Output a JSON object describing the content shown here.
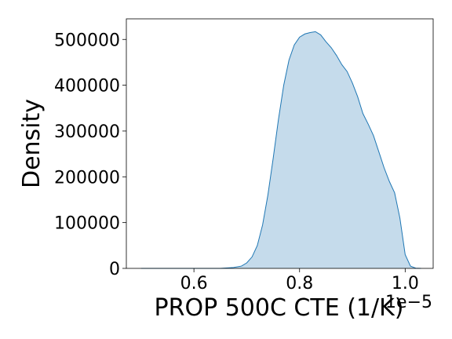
{
  "colors": {
    "fill": "#c5dbeb",
    "line": "#1f77b4",
    "axes": "#000000",
    "background": "#ffffff"
  },
  "chart_data": {
    "type": "area",
    "title": "",
    "xlabel": "PROP 500C CTE (1/K)",
    "ylabel": "Density",
    "x_offset_label": "1e−5",
    "xlim": [
      0.472,
      1.053
    ],
    "ylim": [
      0,
      545000
    ],
    "grid": false,
    "legend": "none",
    "x_ticks": [
      0.6,
      0.8,
      1.0
    ],
    "x_tick_labels": [
      "0.6",
      "0.8",
      "1.0"
    ],
    "y_ticks": [
      0,
      100000,
      200000,
      300000,
      400000,
      500000
    ],
    "y_tick_labels": [
      "0",
      "100000",
      "200000",
      "300000",
      "400000",
      "500000"
    ],
    "series": [
      {
        "x": [
          0.5,
          0.6,
          0.65,
          0.675,
          0.69,
          0.7,
          0.71,
          0.72,
          0.73,
          0.74,
          0.75,
          0.76,
          0.77,
          0.78,
          0.79,
          0.8,
          0.81,
          0.82,
          0.83,
          0.84,
          0.85,
          0.86,
          0.87,
          0.88,
          0.89,
          0.9,
          0.91,
          0.92,
          0.93,
          0.94,
          0.95,
          0.96,
          0.97,
          0.98,
          0.99,
          1.0,
          1.01,
          1.02,
          1.03
        ],
        "y": [
          0,
          0,
          0,
          2000,
          5000,
          12000,
          25000,
          50000,
          95000,
          160000,
          240000,
          325000,
          400000,
          455000,
          488000,
          505000,
          512000,
          515000,
          517000,
          510000,
          495000,
          482000,
          465000,
          445000,
          430000,
          405000,
          375000,
          338000,
          315000,
          290000,
          255000,
          220000,
          190000,
          165000,
          110000,
          30000,
          5000,
          500,
          0
        ]
      }
    ]
  }
}
